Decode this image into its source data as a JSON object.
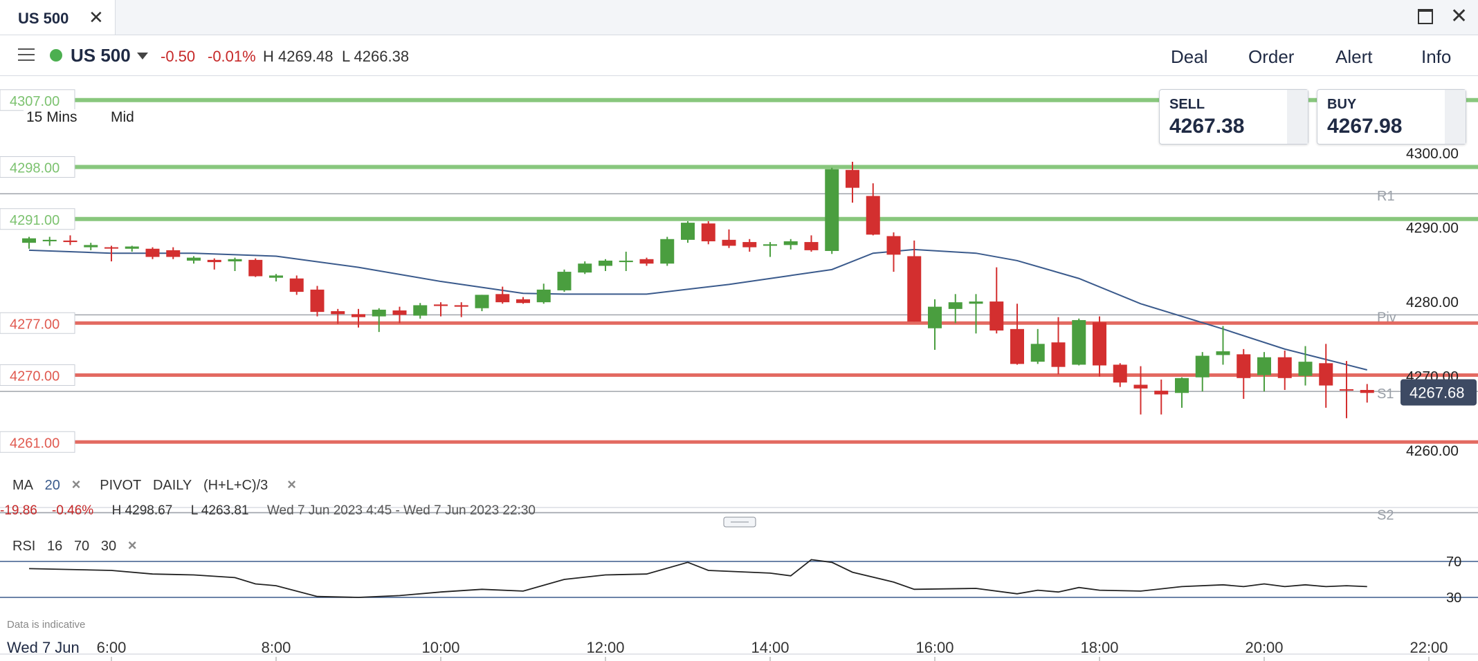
{
  "tab": {
    "title": "US 500",
    "close_icon": "close-icon"
  },
  "window": {
    "maximize_icon": "maximize-icon",
    "close_icon": "close-icon"
  },
  "header": {
    "instrument": "US 500",
    "change": "-0.50",
    "change_pct": "-0.01%",
    "high": "H 4269.48",
    "low": "L 4266.38",
    "status_color": "#4caf50",
    "buttons": [
      "Deal",
      "Order",
      "Alert",
      "Info"
    ]
  },
  "quote": {
    "sell_label": "SELL",
    "sell": "4267.38",
    "buy_label": "BUY",
    "buy": "4267.98"
  },
  "chart_controls": {
    "timeframe": "15 Mins",
    "price_type": "Mid"
  },
  "indicators": {
    "ma_label": "MA",
    "ma_period": "20",
    "pivot_label": "PIVOT",
    "pivot_period": "DAILY",
    "pivot_formula": "(H+L+C)/3",
    "rsi_label": "RSI",
    "rsi_period": "16",
    "rsi_upper": "70",
    "rsi_lower": "30"
  },
  "session_stats": {
    "change": "-19.86",
    "change_pct": "-0.46%",
    "high": "H 4298.67",
    "low": "L 4263.81",
    "range": "Wed 7 Jun 2023 4:45 - Wed 7 Jun 2023 22:30"
  },
  "footer": {
    "disclaimer": "Data is indicative",
    "date": "Wed 7 Jun"
  },
  "chart_data": {
    "type": "candlestick",
    "interval": "15 Mins",
    "colors": {
      "up": "#4a9e3f",
      "down": "#d32f2f",
      "ma": "#3a5a8c",
      "rsi": "#222222",
      "rsi_ob": "#d32f2f",
      "rsi_os": "#4caf50"
    },
    "y_axis": {
      "ticks": [
        "4300.00",
        "4290.00",
        "4280.00",
        "4270.00",
        "4260.00"
      ],
      "range": [
        4256,
        4308
      ]
    },
    "x_axis": {
      "ticks": [
        "6:00",
        "8:00",
        "10:00",
        "12:00",
        "14:00",
        "16:00",
        "18:00",
        "20:00",
        "22:00"
      ],
      "range": [
        5.0,
        22.5
      ]
    },
    "current_price": "4267.68",
    "alert_lines": [
      {
        "label": "4307.00",
        "value": 4307.0,
        "color": "#7cc26f"
      },
      {
        "label": "4298.00",
        "value": 4298.0,
        "color": "#7cc26f"
      },
      {
        "label": "4291.00",
        "value": 4291.0,
        "color": "#7cc26f"
      },
      {
        "label": "4277.00",
        "value": 4277.0,
        "color": "#e05a50"
      },
      {
        "label": "4270.00",
        "value": 4270.0,
        "color": "#e05a50"
      },
      {
        "label": "4261.00",
        "value": 4261.0,
        "color": "#e05a50"
      }
    ],
    "pivot_levels": [
      {
        "label": "R1",
        "value": 4294.4
      },
      {
        "label": "Piv",
        "value": 4278.1
      },
      {
        "label": "S1",
        "value": 4267.8
      },
      {
        "label": "S2",
        "value": 4251.5
      }
    ],
    "candles": [
      {
        "t": 5.0,
        "o": 4287.8,
        "h": 4288.6,
        "l": 4287.0,
        "c": 4288.4
      },
      {
        "t": 5.25,
        "o": 4288.0,
        "h": 4288.6,
        "l": 4287.4,
        "c": 4288.2
      },
      {
        "t": 5.5,
        "o": 4288.1,
        "h": 4288.8,
        "l": 4287.5,
        "c": 4287.9
      },
      {
        "t": 5.75,
        "o": 4287.2,
        "h": 4287.8,
        "l": 4286.8,
        "c": 4287.5
      },
      {
        "t": 6.0,
        "o": 4287.2,
        "h": 4287.4,
        "l": 4285.3,
        "c": 4287.1
      },
      {
        "t": 6.25,
        "o": 4287.0,
        "h": 4287.4,
        "l": 4286.6,
        "c": 4287.3
      },
      {
        "t": 6.5,
        "o": 4287.0,
        "h": 4287.2,
        "l": 4285.6,
        "c": 4285.9
      },
      {
        "t": 6.75,
        "o": 4286.8,
        "h": 4287.2,
        "l": 4285.6,
        "c": 4285.9
      },
      {
        "t": 7.0,
        "o": 4285.4,
        "h": 4286.0,
        "l": 4285.0,
        "c": 4285.8
      },
      {
        "t": 7.25,
        "o": 4285.5,
        "h": 4285.7,
        "l": 4284.2,
        "c": 4285.2
      },
      {
        "t": 7.5,
        "o": 4285.3,
        "h": 4285.8,
        "l": 4284.0,
        "c": 4285.6
      },
      {
        "t": 7.75,
        "o": 4285.5,
        "h": 4285.7,
        "l": 4283.2,
        "c": 4283.3
      },
      {
        "t": 8.0,
        "o": 4283.1,
        "h": 4283.6,
        "l": 4282.6,
        "c": 4283.4
      },
      {
        "t": 8.25,
        "o": 4283.0,
        "h": 4283.4,
        "l": 4280.8,
        "c": 4281.2
      },
      {
        "t": 8.5,
        "o": 4281.5,
        "h": 4282.0,
        "l": 4277.9,
        "c": 4278.5
      },
      {
        "t": 8.75,
        "o": 4278.6,
        "h": 4278.9,
        "l": 4276.9,
        "c": 4278.2
      },
      {
        "t": 9.0,
        "o": 4278.2,
        "h": 4278.9,
        "l": 4276.4,
        "c": 4277.8
      },
      {
        "t": 9.25,
        "o": 4277.9,
        "h": 4279.0,
        "l": 4275.8,
        "c": 4278.8
      },
      {
        "t": 9.5,
        "o": 4278.7,
        "h": 4279.2,
        "l": 4277.0,
        "c": 4278.1
      },
      {
        "t": 9.75,
        "o": 4278.0,
        "h": 4279.7,
        "l": 4277.6,
        "c": 4279.4
      },
      {
        "t": 10.0,
        "o": 4279.5,
        "h": 4279.8,
        "l": 4277.9,
        "c": 4279.3
      },
      {
        "t": 10.25,
        "o": 4279.4,
        "h": 4279.8,
        "l": 4277.8,
        "c": 4279.2
      },
      {
        "t": 10.5,
        "o": 4279.0,
        "h": 4280.8,
        "l": 4278.6,
        "c": 4280.8
      },
      {
        "t": 10.75,
        "o": 4280.9,
        "h": 4281.9,
        "l": 4279.6,
        "c": 4279.8
      },
      {
        "t": 11.0,
        "o": 4280.2,
        "h": 4280.5,
        "l": 4279.6,
        "c": 4279.7
      },
      {
        "t": 11.25,
        "o": 4279.8,
        "h": 4282.3,
        "l": 4279.6,
        "c": 4281.5
      },
      {
        "t": 11.5,
        "o": 4281.4,
        "h": 4284.2,
        "l": 4281.2,
        "c": 4283.9
      },
      {
        "t": 11.75,
        "o": 4283.8,
        "h": 4285.3,
        "l": 4283.6,
        "c": 4285.0
      },
      {
        "t": 12.0,
        "o": 4284.7,
        "h": 4285.6,
        "l": 4284.0,
        "c": 4285.4
      },
      {
        "t": 12.25,
        "o": 4285.2,
        "h": 4286.6,
        "l": 4284.0,
        "c": 4285.4
      },
      {
        "t": 12.5,
        "o": 4285.6,
        "h": 4285.8,
        "l": 4284.7,
        "c": 4285.0
      },
      {
        "t": 12.75,
        "o": 4285.0,
        "h": 4288.6,
        "l": 4284.7,
        "c": 4288.3
      },
      {
        "t": 13.0,
        "o": 4288.2,
        "h": 4290.7,
        "l": 4287.8,
        "c": 4290.5
      },
      {
        "t": 13.25,
        "o": 4290.4,
        "h": 4290.7,
        "l": 4287.6,
        "c": 4288.0
      },
      {
        "t": 13.5,
        "o": 4288.2,
        "h": 4289.6,
        "l": 4287.1,
        "c": 4287.4
      },
      {
        "t": 13.75,
        "o": 4287.9,
        "h": 4288.3,
        "l": 4286.6,
        "c": 4287.2
      },
      {
        "t": 14.0,
        "o": 4287.4,
        "h": 4287.9,
        "l": 4285.9,
        "c": 4287.6
      },
      {
        "t": 14.25,
        "o": 4287.5,
        "h": 4288.3,
        "l": 4286.9,
        "c": 4288.0
      },
      {
        "t": 14.5,
        "o": 4287.9,
        "h": 4288.8,
        "l": 4286.6,
        "c": 4286.8
      },
      {
        "t": 14.75,
        "o": 4286.7,
        "h": 4297.9,
        "l": 4286.3,
        "c": 4297.7
      },
      {
        "t": 15.0,
        "o": 4297.6,
        "h": 4298.7,
        "l": 4293.2,
        "c": 4295.2
      },
      {
        "t": 15.25,
        "o": 4294.1,
        "h": 4295.8,
        "l": 4288.8,
        "c": 4288.9
      },
      {
        "t": 15.5,
        "o": 4288.7,
        "h": 4289.2,
        "l": 4283.9,
        "c": 4286.2
      },
      {
        "t": 15.75,
        "o": 4286.0,
        "h": 4288.1,
        "l": 4277.2,
        "c": 4277.2
      },
      {
        "t": 16.0,
        "o": 4276.3,
        "h": 4280.2,
        "l": 4273.4,
        "c": 4279.2
      },
      {
        "t": 16.25,
        "o": 4278.9,
        "h": 4280.9,
        "l": 4277.0,
        "c": 4279.8
      },
      {
        "t": 16.5,
        "o": 4279.6,
        "h": 4280.9,
        "l": 4275.6,
        "c": 4279.9
      },
      {
        "t": 16.75,
        "o": 4279.9,
        "h": 4284.5,
        "l": 4275.6,
        "c": 4276.0
      },
      {
        "t": 17.0,
        "o": 4276.2,
        "h": 4279.6,
        "l": 4271.4,
        "c": 4271.5
      },
      {
        "t": 17.25,
        "o": 4271.8,
        "h": 4276.2,
        "l": 4271.5,
        "c": 4274.2
      },
      {
        "t": 17.5,
        "o": 4274.4,
        "h": 4277.8,
        "l": 4270.1,
        "c": 4271.1
      },
      {
        "t": 17.75,
        "o": 4271.4,
        "h": 4277.6,
        "l": 4271.3,
        "c": 4277.4
      },
      {
        "t": 18.0,
        "o": 4277.1,
        "h": 4277.9,
        "l": 4269.8,
        "c": 4271.3
      },
      {
        "t": 18.25,
        "o": 4271.4,
        "h": 4271.6,
        "l": 4268.4,
        "c": 4269.0
      },
      {
        "t": 18.5,
        "o": 4268.7,
        "h": 4271.2,
        "l": 4264.7,
        "c": 4268.2
      },
      {
        "t": 18.75,
        "o": 4267.9,
        "h": 4269.4,
        "l": 4264.7,
        "c": 4267.4
      },
      {
        "t": 19.0,
        "o": 4267.6,
        "h": 4269.7,
        "l": 4265.6,
        "c": 4269.6
      },
      {
        "t": 19.25,
        "o": 4269.7,
        "h": 4273.1,
        "l": 4267.8,
        "c": 4272.6
      },
      {
        "t": 19.5,
        "o": 4272.7,
        "h": 4276.6,
        "l": 4271.4,
        "c": 4273.2
      },
      {
        "t": 19.75,
        "o": 4272.8,
        "h": 4273.5,
        "l": 4266.8,
        "c": 4269.6
      },
      {
        "t": 20.0,
        "o": 4270.0,
        "h": 4273.1,
        "l": 4267.8,
        "c": 4272.4
      },
      {
        "t": 20.25,
        "o": 4272.4,
        "h": 4273.3,
        "l": 4268.0,
        "c": 4269.6
      },
      {
        "t": 20.5,
        "o": 4269.9,
        "h": 4273.9,
        "l": 4268.6,
        "c": 4271.8
      },
      {
        "t": 20.75,
        "o": 4271.6,
        "h": 4274.2,
        "l": 4265.6,
        "c": 4268.6
      },
      {
        "t": 21.0,
        "o": 4268.1,
        "h": 4271.9,
        "l": 4264.2,
        "c": 4268.0
      },
      {
        "t": 21.25,
        "o": 4268.0,
        "h": 4268.8,
        "l": 4266.3,
        "c": 4267.6
      }
    ],
    "ma": [
      [
        5.0,
        4286.8
      ],
      [
        6.0,
        4286.4
      ],
      [
        7.0,
        4286.4
      ],
      [
        8.0,
        4286.0
      ],
      [
        9.0,
        4284.5
      ],
      [
        10.0,
        4282.6
      ],
      [
        11.0,
        4281.0
      ],
      [
        11.5,
        4280.9
      ],
      [
        12.5,
        4280.9
      ],
      [
        13.5,
        4282.2
      ],
      [
        14.25,
        4283.4
      ],
      [
        14.75,
        4284.2
      ],
      [
        15.25,
        4286.4
      ],
      [
        15.75,
        4286.9
      ],
      [
        16.5,
        4286.4
      ],
      [
        17.0,
        4285.4
      ],
      [
        17.75,
        4283.0
      ],
      [
        18.5,
        4279.6
      ],
      [
        19.5,
        4276.2
      ],
      [
        20.25,
        4273.5
      ],
      [
        21.0,
        4271.4
      ],
      [
        21.25,
        4270.7
      ]
    ],
    "rsi": {
      "range": [
        20,
        80
      ],
      "overbought": 70,
      "oversold": 30,
      "points": [
        [
          5.0,
          62
        ],
        [
          6.0,
          60
        ],
        [
          6.5,
          56
        ],
        [
          7.0,
          55
        ],
        [
          7.5,
          52
        ],
        [
          7.75,
          45
        ],
        [
          8.0,
          43
        ],
        [
          8.5,
          31
        ],
        [
          9.0,
          30
        ],
        [
          9.5,
          32
        ],
        [
          10.0,
          36
        ],
        [
          10.5,
          39
        ],
        [
          11.0,
          37
        ],
        [
          11.5,
          50
        ],
        [
          12.0,
          55
        ],
        [
          12.5,
          56
        ],
        [
          13.0,
          69
        ],
        [
          13.25,
          60
        ],
        [
          14.0,
          57
        ],
        [
          14.25,
          54
        ],
        [
          14.5,
          72
        ],
        [
          14.75,
          69
        ],
        [
          15.0,
          58
        ],
        [
          15.5,
          47
        ],
        [
          15.75,
          39
        ],
        [
          16.5,
          40
        ],
        [
          17.0,
          34
        ],
        [
          17.25,
          38
        ],
        [
          17.5,
          36
        ],
        [
          17.75,
          41
        ],
        [
          18.0,
          38
        ],
        [
          18.5,
          37
        ],
        [
          19.0,
          42
        ],
        [
          19.5,
          44
        ],
        [
          19.75,
          42
        ],
        [
          20.0,
          45
        ],
        [
          20.25,
          42
        ],
        [
          20.5,
          44
        ],
        [
          20.75,
          42
        ],
        [
          21.0,
          43
        ],
        [
          21.25,
          42
        ]
      ]
    }
  }
}
